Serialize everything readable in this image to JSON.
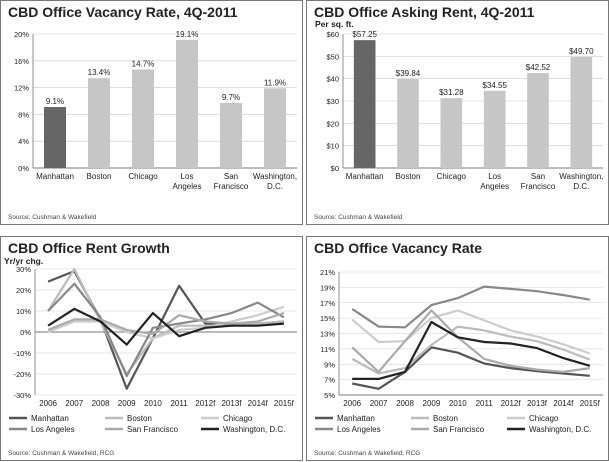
{
  "chart_data": [
    {
      "id": "vacancy_bar",
      "type": "bar",
      "title": "CBD Office Vacancy Rate, 4Q-2011",
      "source": "Source: Cushman & Wakefield",
      "ylabel": "",
      "unit_label": "",
      "categories": [
        "Manhattan",
        "Boston",
        "Chicago",
        "Los Angeles",
        "San Francisco",
        "Washington, D.C."
      ],
      "category_lines": [
        [
          "Manhattan"
        ],
        [
          "Boston"
        ],
        [
          "Chicago"
        ],
        [
          "Los",
          "Angeles"
        ],
        [
          "San",
          "Francisco"
        ],
        [
          "Washington,",
          "D.C."
        ]
      ],
      "values": [
        9.1,
        13.4,
        14.7,
        19.1,
        9.7,
        11.9
      ],
      "data_labels": [
        "9.1%",
        "13.4%",
        "14.7%",
        "19.1%",
        "9.7%",
        "11.9%"
      ],
      "ylim": [
        0,
        20
      ],
      "yticks": [
        0,
        4,
        8,
        12,
        16,
        20
      ],
      "ytick_labels": [
        "0%",
        "4%",
        "8%",
        "12%",
        "16%",
        "20%"
      ],
      "bar_colors": [
        "#666666",
        "#c6c6c6",
        "#c6c6c6",
        "#c6c6c6",
        "#c6c6c6",
        "#c6c6c6"
      ],
      "grid": true
    },
    {
      "id": "rent_bar",
      "type": "bar",
      "title": "CBD Office Asking Rent, 4Q-2011",
      "source": "Source: Cushman & Wakefield",
      "unit_label": "Per sq. ft.",
      "categories": [
        "Manhattan",
        "Boston",
        "Chicago",
        "Los Angeles",
        "San Francisco",
        "Washington, D.C."
      ],
      "category_lines": [
        [
          "Manhattan"
        ],
        [
          "Boston"
        ],
        [
          "Chicago"
        ],
        [
          "Los",
          "Angeles"
        ],
        [
          "San",
          "Francisco"
        ],
        [
          "Washington,",
          "D.C."
        ]
      ],
      "values": [
        57.25,
        39.84,
        31.28,
        34.55,
        42.52,
        49.7
      ],
      "data_labels": [
        "$57.25",
        "$39.84",
        "$31.28",
        "$34.55",
        "$42.52",
        "$49.70"
      ],
      "ylim": [
        0,
        60
      ],
      "yticks": [
        0,
        10,
        20,
        30,
        40,
        50,
        60
      ],
      "ytick_labels": [
        "$0",
        "$10",
        "$20",
        "$30",
        "$40",
        "$50",
        "$60"
      ],
      "bar_colors": [
        "#666666",
        "#c6c6c6",
        "#c6c6c6",
        "#c6c6c6",
        "#c6c6c6",
        "#c6c6c6"
      ],
      "grid": true
    },
    {
      "id": "rent_growth",
      "type": "line",
      "title": "CBD Office Rent Growth",
      "source": "Source: Cushman & Wakefield, RCG",
      "unit_label": "Yr/yr chg.",
      "x": [
        "2006",
        "2007",
        "2008",
        "2009",
        "2010",
        "2011",
        "2012f",
        "2013f",
        "2014f",
        "2015f"
      ],
      "ylim": [
        -30,
        30
      ],
      "yticks": [
        -30,
        -20,
        -10,
        0,
        10,
        20,
        30
      ],
      "ytick_labels": [
        "-30%",
        "-20%",
        "-10%",
        "0%",
        "10%",
        "20%",
        "30%"
      ],
      "legend_position": "bottom",
      "series": [
        {
          "name": "Manhattan",
          "color": "#555555",
          "values": [
            24,
            29,
            6,
            -27,
            -3,
            22,
            4,
            3,
            4,
            5
          ]
        },
        {
          "name": "Boston",
          "color": "#bbbbbb",
          "values": [
            10,
            30,
            5,
            -20,
            -3,
            3,
            3,
            3,
            4,
            5
          ]
        },
        {
          "name": "Chicago",
          "color": "#cccccc",
          "values": [
            0,
            5,
            5,
            0,
            -3,
            1,
            2,
            5,
            8,
            12
          ]
        },
        {
          "name": "Los Angeles",
          "color": "#888888",
          "values": [
            10,
            23,
            7,
            -21,
            2,
            4,
            6,
            9,
            14,
            7
          ]
        },
        {
          "name": "San Francisco",
          "color": "#aaaaaa",
          "values": [
            1,
            6,
            6,
            1,
            -1,
            8,
            5,
            4,
            5,
            9
          ]
        },
        {
          "name": "Washington, D.C.",
          "color": "#222222",
          "values": [
            3,
            11,
            5,
            -6,
            9,
            -2,
            2,
            3,
            3,
            4
          ]
        }
      ]
    },
    {
      "id": "vacancy_line",
      "type": "line",
      "title": "CBD Office Vacancy Rate",
      "source": "Source: Cushman & Wakefield, RCG",
      "unit_label": "",
      "x": [
        "2006",
        "2007",
        "2008",
        "2009",
        "2010",
        "2011",
        "2012f",
        "2013f",
        "2014f",
        "2015f"
      ],
      "ylim": [
        5,
        21
      ],
      "yticks": [
        5,
        7,
        9,
        11,
        13,
        15,
        17,
        19,
        21
      ],
      "ytick_labels": [
        "5%",
        "7%",
        "9%",
        "11%",
        "13%",
        "15%",
        "17%",
        "19%",
        "21%"
      ],
      "legend_position": "bottom",
      "series": [
        {
          "name": "Manhattan",
          "color": "#555555",
          "values": [
            6.5,
            5.8,
            8.0,
            11.2,
            10.5,
            9.1,
            8.5,
            8.1,
            7.8,
            7.5
          ]
        },
        {
          "name": "Boston",
          "color": "#bbbbbb",
          "values": [
            9.7,
            7.8,
            8.5,
            11.5,
            13.9,
            13.4,
            12.6,
            12.0,
            10.9,
            9.6
          ]
        },
        {
          "name": "Chicago",
          "color": "#cccccc",
          "values": [
            14.8,
            11.9,
            12.0,
            15.0,
            16.0,
            14.7,
            13.4,
            12.6,
            11.6,
            10.4
          ]
        },
        {
          "name": "Los Angeles",
          "color": "#888888",
          "values": [
            16.2,
            13.9,
            13.8,
            16.7,
            17.6,
            19.1,
            18.8,
            18.5,
            18.0,
            17.4
          ]
        },
        {
          "name": "San Francisco",
          "color": "#aaaaaa",
          "values": [
            11.2,
            8.0,
            12.0,
            16.0,
            12.5,
            9.7,
            8.8,
            8.3,
            8.0,
            8.5
          ]
        },
        {
          "name": "Washington, D.C.",
          "color": "#222222",
          "values": [
            7.1,
            7.1,
            8.0,
            14.5,
            12.5,
            11.9,
            11.7,
            11.1,
            9.8,
            8.8
          ]
        }
      ]
    }
  ]
}
